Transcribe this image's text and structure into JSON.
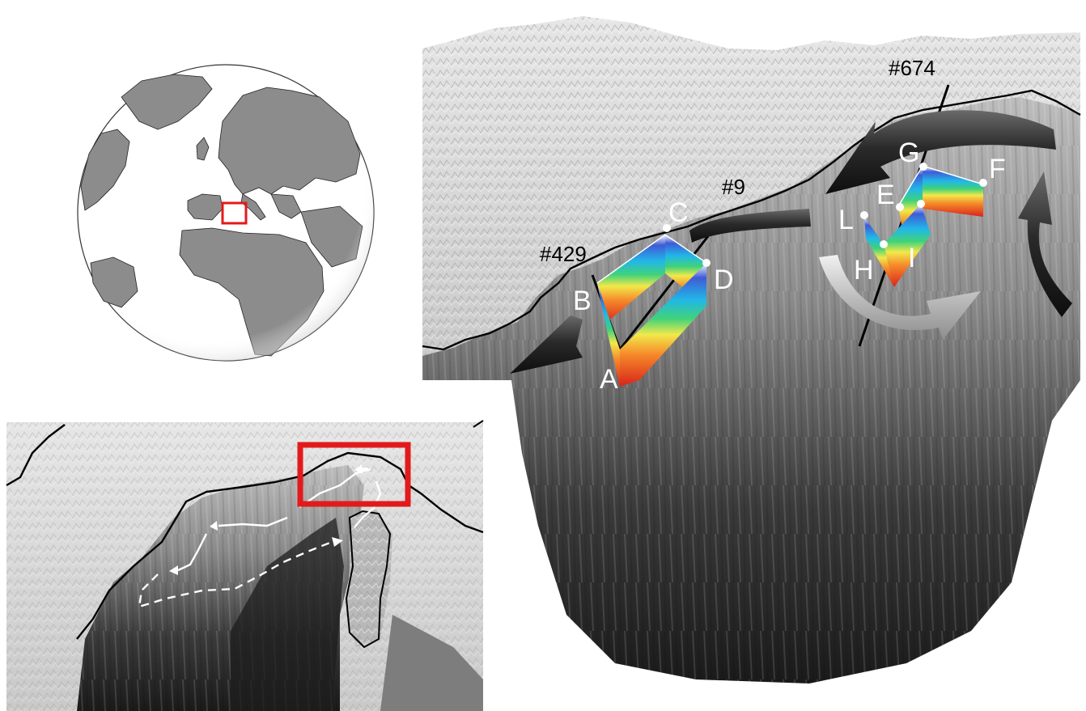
{
  "labels": {
    "transect_674": "#674",
    "transect_9": "#9",
    "transect_429": "#429",
    "pt_A": "A",
    "pt_B": "B",
    "pt_C": "C",
    "pt_D": "D",
    "pt_E": "E",
    "pt_F": "F",
    "pt_G": "G",
    "pt_H": "H",
    "pt_I": "I",
    "pt_L": "L"
  },
  "colors": {
    "highlight_box": "#e31a1c",
    "coastline": "#000000",
    "land_globe": "#8c8c8c",
    "ocean_globe": "#ffffff",
    "arrow_dark": "#2b2b2b",
    "arrow_light": "#bdbdbd",
    "circulation_paths": "#ffffff"
  },
  "icons": {
    "globe": "globe-locator-map",
    "inset_box": "red-rectangle-highlight",
    "current_arrow": "dark-3d-arrow",
    "eddy_arrow": "light-3d-curved-arrow"
  }
}
